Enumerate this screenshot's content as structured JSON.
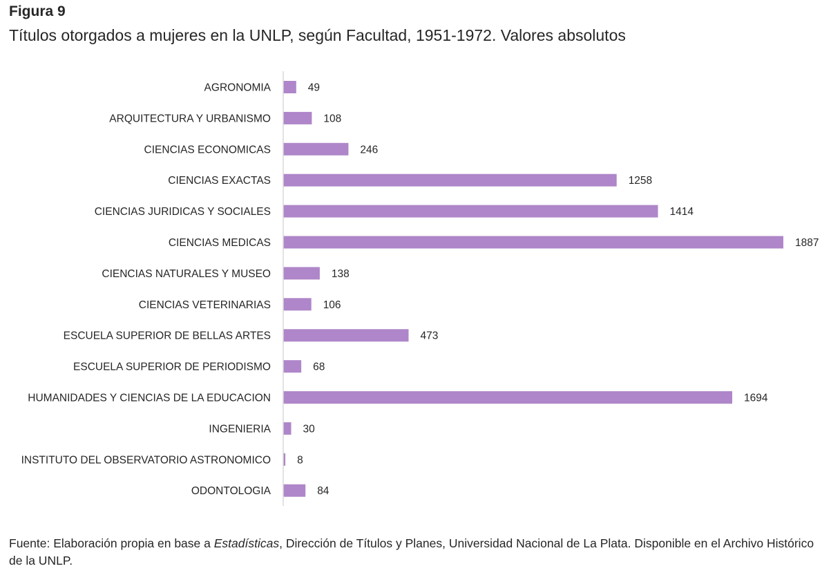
{
  "figure": {
    "label": "Figura 9",
    "title": "Títulos otorgados a mujeres en la UNLP, según Facultad, 1951-1972. Valores absolutos"
  },
  "source": {
    "prefix": "Fuente: Elaboración propia en base a ",
    "italic": "Estadísticas",
    "suffix": ", Dirección de Títulos y Planes, Universidad Nacional de La Plata. Disponible en el Archivo Histórico de la UNLP."
  },
  "colors": {
    "bar": "#AF86C9",
    "axis": "#D9D9D9",
    "text": "#262626"
  },
  "chart_data": {
    "type": "bar",
    "orientation": "horizontal",
    "categories": [
      "AGRONOMIA",
      "ARQUITECTURA Y URBANISMO",
      "CIENCIAS ECONOMICAS",
      "CIENCIAS EXACTAS",
      "CIENCIAS JURIDICAS Y SOCIALES",
      "CIENCIAS MEDICAS",
      "CIENCIAS NATURALES Y MUSEO",
      "CIENCIAS VETERINARIAS",
      "ESCUELA SUPERIOR DE BELLAS ARTES",
      "ESCUELA SUPERIOR DE PERIODISMO",
      "HUMANIDADES Y CIENCIAS DE LA EDUCACION",
      "INGENIERIA",
      "INSTITUTO DEL OBSERVATORIO ASTRONOMICO",
      "ODONTOLOGIA"
    ],
    "values": [
      49,
      108,
      246,
      1258,
      1414,
      1887,
      138,
      106,
      473,
      68,
      1694,
      30,
      8,
      84
    ],
    "data_labels": true,
    "xlim": [
      0,
      1887
    ],
    "grid": false,
    "legend": "none"
  }
}
